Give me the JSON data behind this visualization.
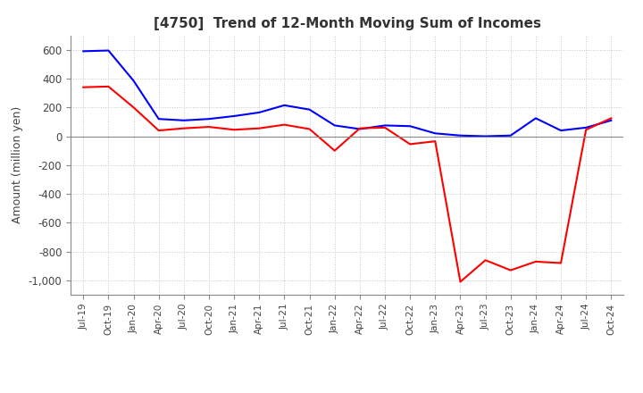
{
  "title": "[4750]  Trend of 12-Month Moving Sum of Incomes",
  "ylabel": "Amount (million yen)",
  "ylim": [
    -1100,
    700
  ],
  "yticks": [
    -1000,
    -800,
    -600,
    -400,
    -200,
    0,
    200,
    400,
    600
  ],
  "background_color": "#ffffff",
  "grid_color": "#c8c8c8",
  "ordinary_income_color": "#0000ff",
  "net_income_color": "#ff0000",
  "x_labels": [
    "Jul-19",
    "Oct-19",
    "Jan-20",
    "Apr-20",
    "Jul-20",
    "Oct-20",
    "Jan-21",
    "Apr-21",
    "Jul-21",
    "Oct-21",
    "Jan-22",
    "Apr-22",
    "Jul-22",
    "Oct-22",
    "Jan-23",
    "Apr-23",
    "Jul-23",
    "Oct-23",
    "Jan-24",
    "Apr-24",
    "Jul-24",
    "Oct-24"
  ],
  "ordinary_income": [
    590,
    595,
    385,
    120,
    110,
    120,
    140,
    165,
    215,
    185,
    75,
    50,
    75,
    70,
    20,
    5,
    0,
    5,
    125,
    40,
    60,
    110
  ],
  "net_income": [
    340,
    345,
    200,
    40,
    55,
    65,
    45,
    55,
    80,
    50,
    -100,
    55,
    60,
    -55,
    -35,
    -1010,
    -860,
    -930,
    -870,
    -880,
    45,
    125
  ]
}
